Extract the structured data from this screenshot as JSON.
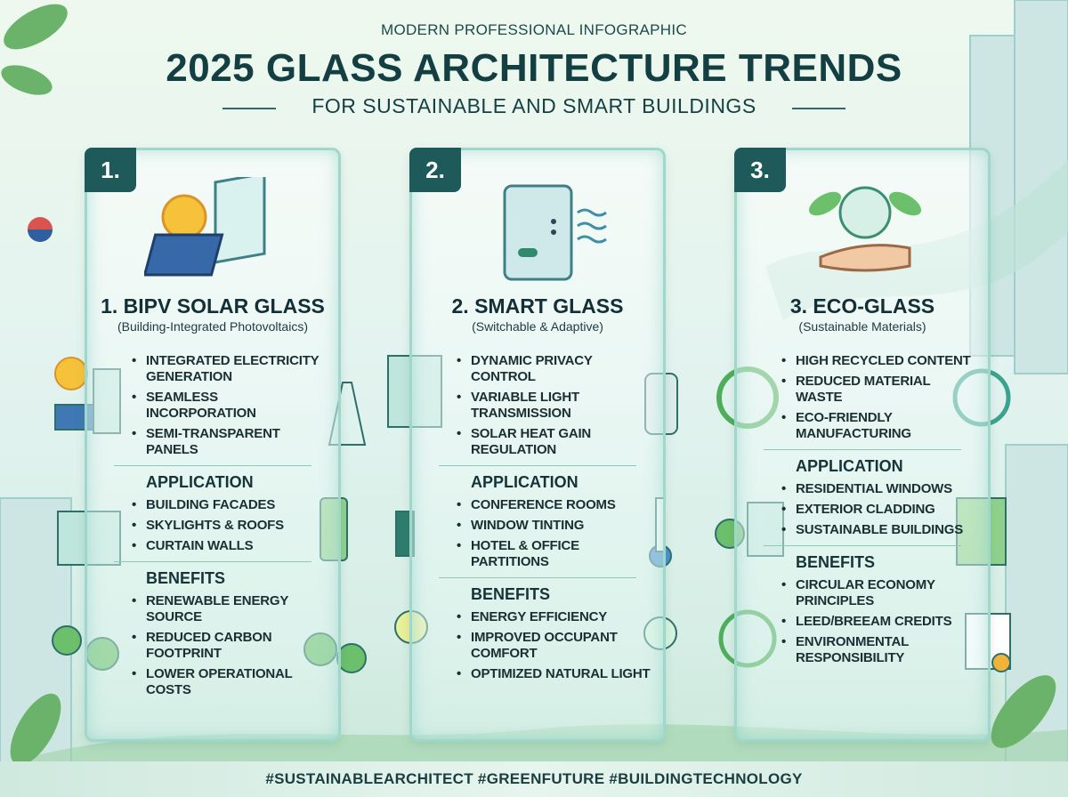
{
  "header": {
    "kicker": "MODERN PROFESSIONAL INFOGRAPHIC",
    "title": "2025 GLASS ARCHITECTURE TRENDS",
    "subtitle": "FOR SUSTAINABLE AND SMART BUILDINGS"
  },
  "panels": [
    {
      "number": "1.",
      "title": "1. BIPV SOLAR GLASS",
      "subtitle": "(Building-Integrated Photovoltaics)",
      "features": [
        "INTEGRATED ELECTRICITY GENERATION",
        "SEAMLESS INCORPORATION",
        "SEMI-TRANSPARENT PANELS"
      ],
      "application_heading": "APPLICATION",
      "applications": [
        "BUILDING FACADES",
        "SKYLIGHTS & ROOFS",
        "CURTAIN WALLS"
      ],
      "benefits_heading": "BENEFITS",
      "benefits": [
        "RENEWABLE ENERGY SOURCE",
        "REDUCED CARBON FOOTPRINT",
        "LOWER OPERATIONAL COSTS"
      ]
    },
    {
      "number": "2.",
      "title": "2. SMART GLASS",
      "subtitle": "(Switchable & Adaptive)",
      "features": [
        "DYNAMIC PRIVACY CONTROL",
        "VARIABLE LIGHT TRANSMISSION",
        "SOLAR HEAT GAIN REGULATION"
      ],
      "application_heading": "APPLICATION",
      "applications": [
        "CONFERENCE ROOMS",
        "WINDOW TINTING",
        "HOTEL & OFFICE PARTITIONS"
      ],
      "benefits_heading": "BENEFITS",
      "benefits": [
        "ENERGY EFFICIENCY",
        "IMPROVED OCCUPANT COMFORT",
        "OPTIMIZED NATURAL LIGHT"
      ]
    },
    {
      "number": "3.",
      "title": "3. ECO-GLASS",
      "subtitle": "(Sustainable Materials)",
      "features": [
        "HIGH RECYCLED CONTENT",
        "REDUCED MATERIAL WASTE",
        "ECO-FRIENDLY MANUFACTURING"
      ],
      "application_heading": "APPLICATION",
      "applications": [
        "RESIDENTIAL WINDOWS",
        "EXTERIOR CLADDING",
        "SUSTAINABLE BUILDINGS"
      ],
      "benefits_heading": "BENEFITS",
      "benefits": [
        "CIRCULAR ECONOMY PRINCIPLES",
        "LEED/BREEAM CREDITS",
        "ENVIRONMENTAL RESPONSIBILITY"
      ]
    }
  ],
  "footer": "#SUSTAINABLEARCHITECT #GREENFUTURE #BUILDINGTECHNOLOGY"
}
